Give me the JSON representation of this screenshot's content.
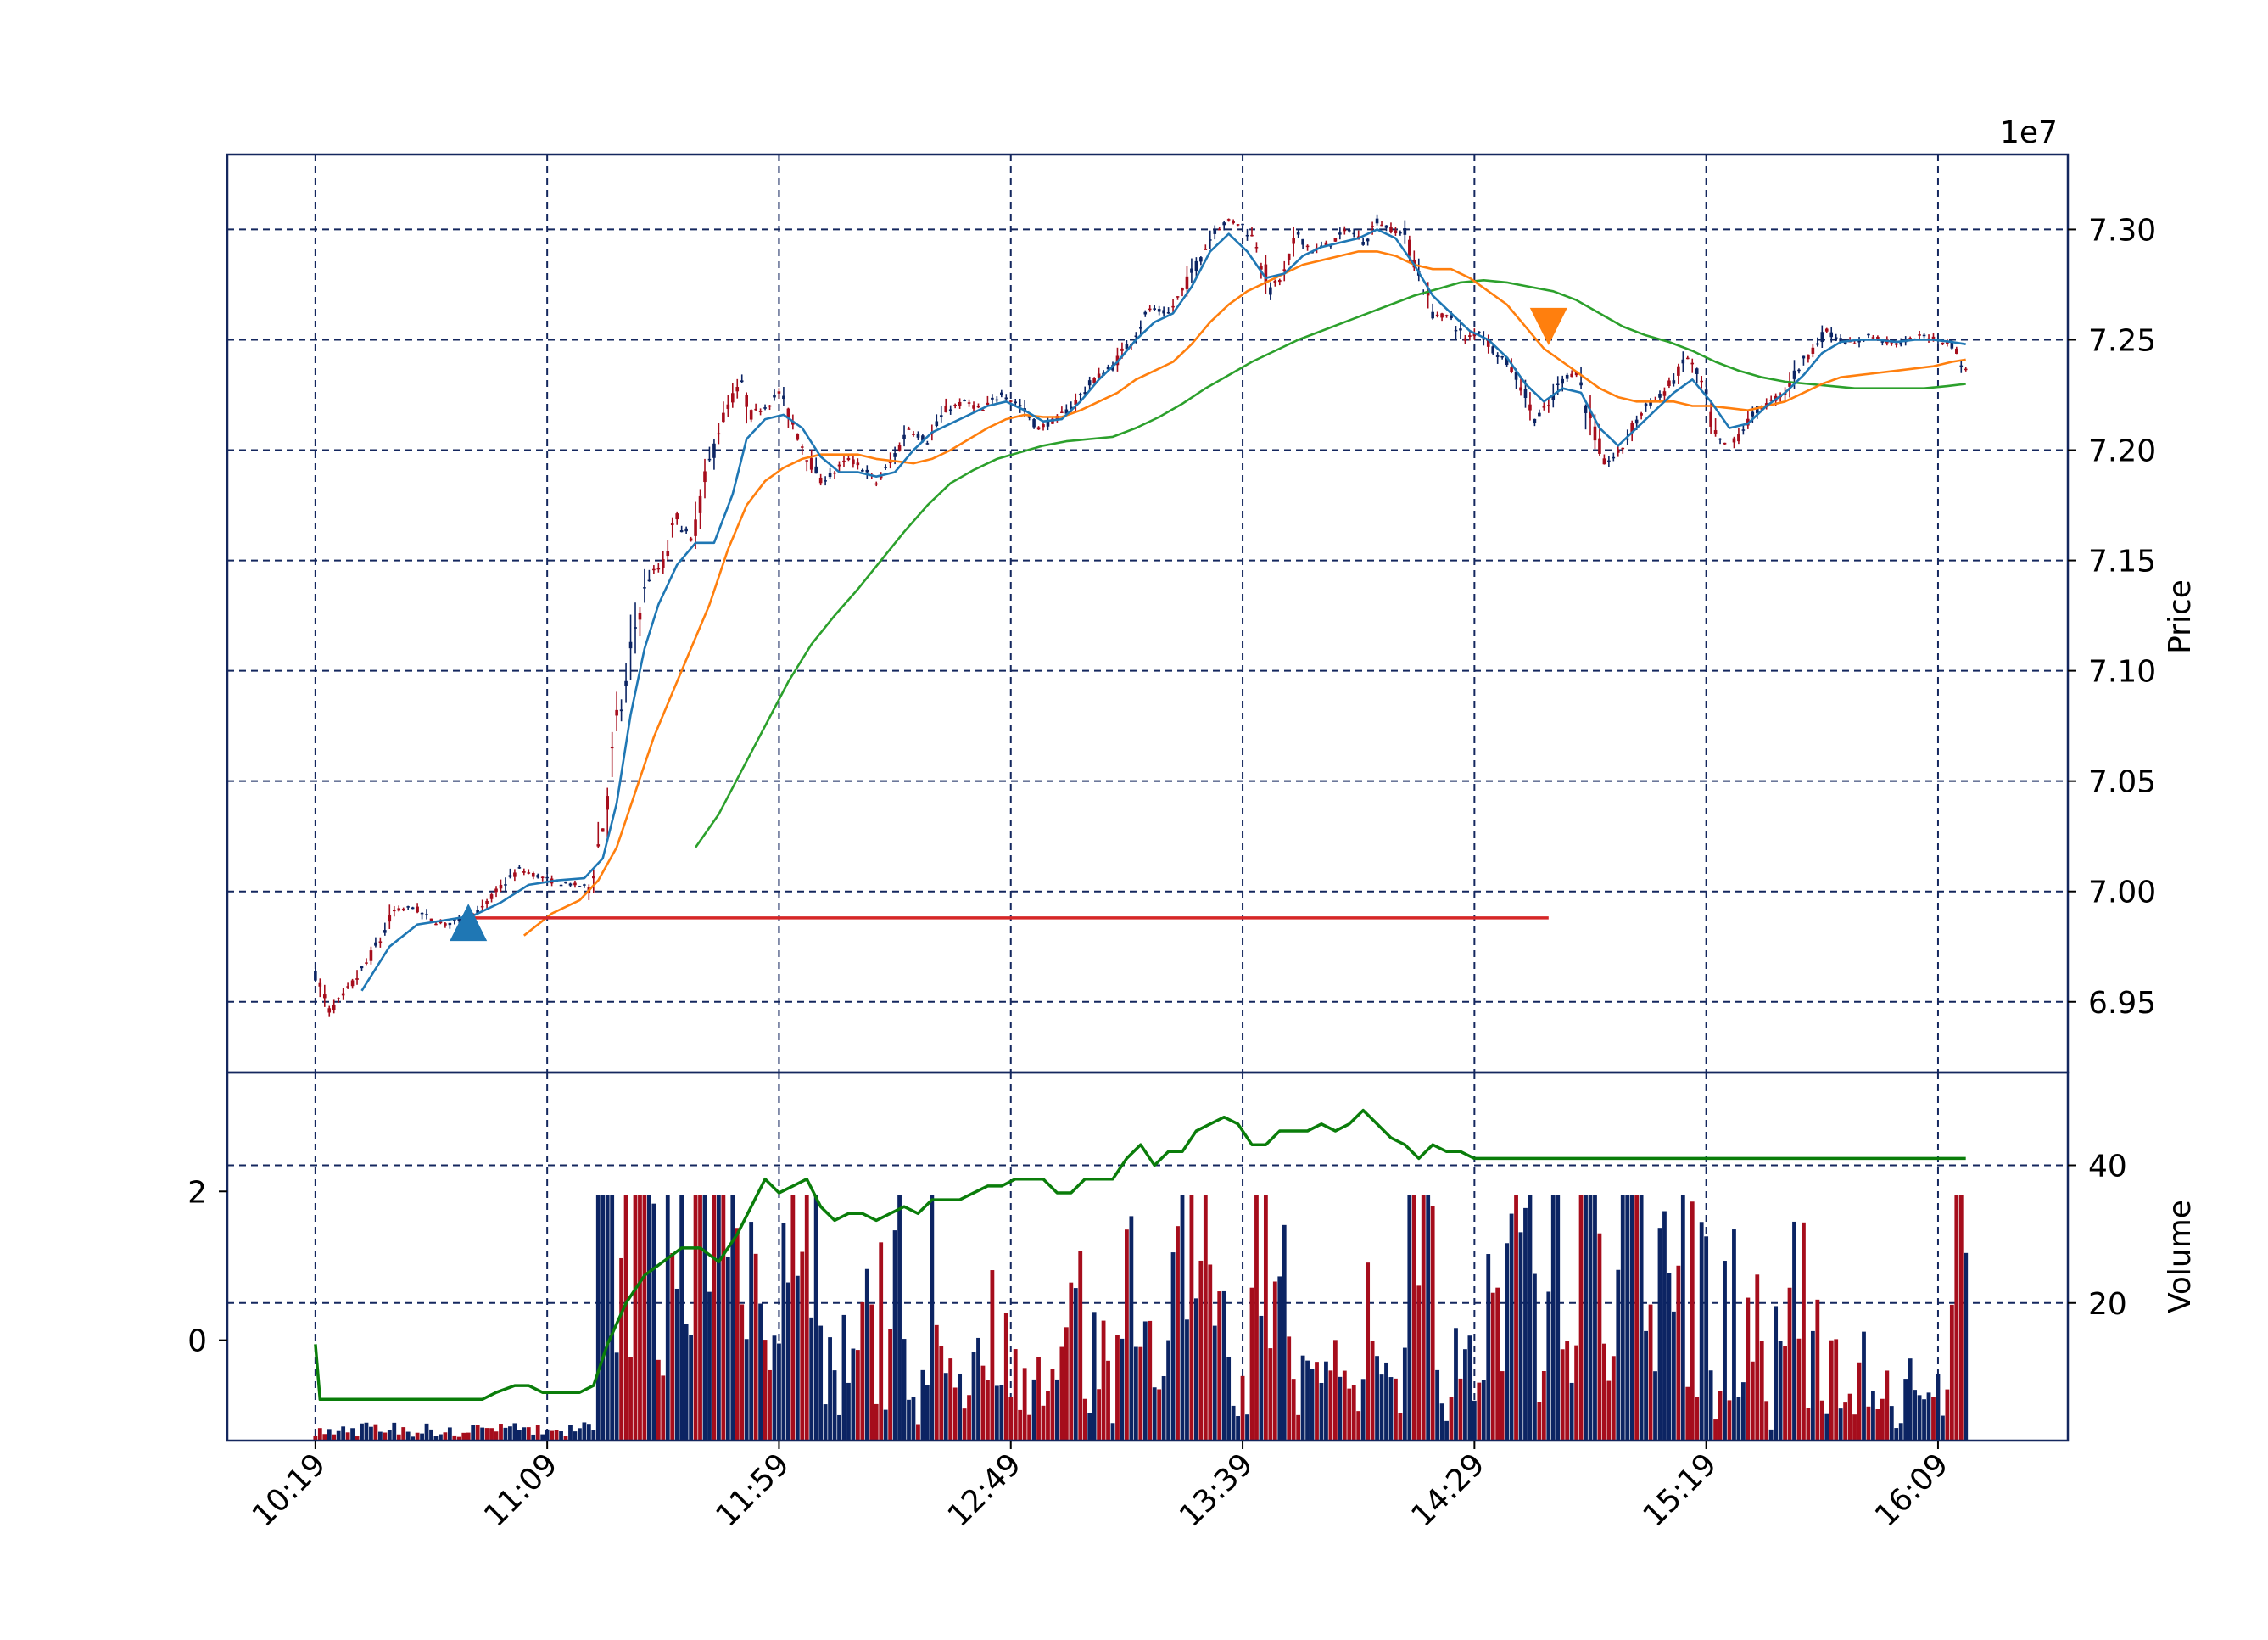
{
  "chart_data": {
    "type": "candlestick",
    "price_axis": {
      "label": "Price",
      "multiplier_label": "1e7",
      "ticks": [
        6.95,
        7.0,
        7.05,
        7.1,
        7.15,
        7.2,
        7.25,
        7.3
      ],
      "tick_labels": [
        "6.95",
        "7.00",
        "7.05",
        "7.10",
        "7.15",
        "7.20",
        "7.25",
        "7.30"
      ],
      "range": [
        6.918,
        7.334
      ],
      "side": "right"
    },
    "time_axis": {
      "tick_minutes": [
        619,
        669,
        719,
        769,
        819,
        869,
        919,
        969
      ],
      "tick_labels": [
        "10:19",
        "11:09",
        "11:59",
        "12:49",
        "13:39",
        "14:29",
        "15:19",
        "16:09"
      ],
      "range_minutes": [
        600,
        997
      ]
    },
    "volume_axis_left": {
      "ticks": [
        0,
        2
      ],
      "tick_labels": [
        "0",
        "2"
      ],
      "range": [
        -1.35,
        3.6
      ]
    },
    "volume_axis_right": {
      "label": "Volume",
      "ticks": [
        20,
        40
      ],
      "tick_labels": [
        "20",
        "40"
      ],
      "range": [
        0,
        53.5
      ]
    },
    "price_path": [
      [
        619,
        6.962
      ],
      [
        622,
        6.946
      ],
      [
        625,
        6.952
      ],
      [
        629,
        6.964
      ],
      [
        633,
        6.978
      ],
      [
        636,
        6.991
      ],
      [
        640,
        6.993
      ],
      [
        644,
        6.987
      ],
      [
        647,
        6.985
      ],
      [
        651,
        6.988
      ],
      [
        655,
        6.992
      ],
      [
        659,
        7.002
      ],
      [
        663,
        7.01
      ],
      [
        667,
        7.007
      ],
      [
        671,
        7.004
      ],
      [
        675,
        7.003
      ],
      [
        678,
        7.002
      ],
      [
        681,
        7.03
      ],
      [
        684,
        7.075
      ],
      [
        686,
        7.092
      ],
      [
        688,
        7.12
      ],
      [
        691,
        7.143
      ],
      [
        694,
        7.148
      ],
      [
        697,
        7.17
      ],
      [
        700,
        7.158
      ],
      [
        703,
        7.185
      ],
      [
        706,
        7.21
      ],
      [
        709,
        7.224
      ],
      [
        711,
        7.23
      ],
      [
        713,
        7.216
      ],
      [
        716,
        7.22
      ],
      [
        719,
        7.226
      ],
      [
        722,
        7.212
      ],
      [
        725,
        7.198
      ],
      [
        728,
        7.186
      ],
      [
        731,
        7.19
      ],
      [
        734,
        7.196
      ],
      [
        737,
        7.192
      ],
      [
        740,
        7.185
      ],
      [
        743,
        7.194
      ],
      [
        747,
        7.21
      ],
      [
        751,
        7.204
      ],
      [
        755,
        7.218
      ],
      [
        759,
        7.222
      ],
      [
        763,
        7.218
      ],
      [
        767,
        7.226
      ],
      [
        771,
        7.22
      ],
      [
        775,
        7.21
      ],
      [
        779,
        7.214
      ],
      [
        783,
        7.222
      ],
      [
        787,
        7.232
      ],
      [
        791,
        7.238
      ],
      [
        795,
        7.25
      ],
      [
        799,
        7.264
      ],
      [
        803,
        7.262
      ],
      [
        806,
        7.272
      ],
      [
        810,
        7.288
      ],
      [
        813,
        7.3
      ],
      [
        816,
        7.304
      ],
      [
        819,
        7.302
      ],
      [
        822,
        7.294
      ],
      [
        825,
        7.272
      ],
      [
        828,
        7.28
      ],
      [
        831,
        7.298
      ],
      [
        834,
        7.29
      ],
      [
        838,
        7.294
      ],
      [
        842,
        7.3
      ],
      [
        845,
        7.294
      ],
      [
        848,
        7.304
      ],
      [
        851,
        7.3
      ],
      [
        854,
        7.298
      ],
      [
        857,
        7.28
      ],
      [
        860,
        7.262
      ],
      [
        864,
        7.26
      ],
      [
        867,
        7.25
      ],
      [
        870,
        7.254
      ],
      [
        873,
        7.246
      ],
      [
        876,
        7.24
      ],
      [
        879,
        7.23
      ],
      [
        882,
        7.214
      ],
      [
        885,
        7.22
      ],
      [
        888,
        7.232
      ],
      [
        891,
        7.236
      ],
      [
        894,
        7.214
      ],
      [
        897,
        7.194
      ],
      [
        900,
        7.198
      ],
      [
        903,
        7.21
      ],
      [
        906,
        7.22
      ],
      [
        909,
        7.224
      ],
      [
        912,
        7.232
      ],
      [
        915,
        7.242
      ],
      [
        918,
        7.23
      ],
      [
        921,
        7.206
      ],
      [
        924,
        7.2
      ],
      [
        927,
        7.21
      ],
      [
        930,
        7.218
      ],
      [
        933,
        7.222
      ],
      [
        936,
        7.226
      ],
      [
        939,
        7.238
      ],
      [
        942,
        7.246
      ],
      [
        945,
        7.254
      ],
      [
        948,
        7.25
      ],
      [
        951,
        7.248
      ],
      [
        954,
        7.252
      ],
      [
        957,
        7.25
      ],
      [
        960,
        7.248
      ],
      [
        963,
        7.25
      ],
      [
        966,
        7.252
      ],
      [
        969,
        7.25
      ],
      [
        972,
        7.248
      ],
      [
        975,
        7.236
      ]
    ],
    "ma_fast": [
      [
        629,
        6.955
      ],
      [
        635,
        6.975
      ],
      [
        641,
        6.985
      ],
      [
        647,
        6.987
      ],
      [
        653,
        6.989
      ],
      [
        659,
        6.995
      ],
      [
        665,
        7.003
      ],
      [
        671,
        7.005
      ],
      [
        677,
        7.006
      ],
      [
        681,
        7.015
      ],
      [
        684,
        7.04
      ],
      [
        687,
        7.08
      ],
      [
        690,
        7.11
      ],
      [
        693,
        7.13
      ],
      [
        697,
        7.148
      ],
      [
        701,
        7.158
      ],
      [
        705,
        7.158
      ],
      [
        709,
        7.18
      ],
      [
        712,
        7.205
      ],
      [
        716,
        7.214
      ],
      [
        720,
        7.216
      ],
      [
        724,
        7.21
      ],
      [
        728,
        7.197
      ],
      [
        732,
        7.19
      ],
      [
        736,
        7.19
      ],
      [
        740,
        7.188
      ],
      [
        744,
        7.19
      ],
      [
        748,
        7.2
      ],
      [
        752,
        7.208
      ],
      [
        756,
        7.212
      ],
      [
        760,
        7.216
      ],
      [
        764,
        7.22
      ],
      [
        768,
        7.222
      ],
      [
        772,
        7.218
      ],
      [
        776,
        7.213
      ],
      [
        780,
        7.214
      ],
      [
        784,
        7.222
      ],
      [
        788,
        7.232
      ],
      [
        792,
        7.24
      ],
      [
        796,
        7.25
      ],
      [
        800,
        7.258
      ],
      [
        804,
        7.262
      ],
      [
        808,
        7.274
      ],
      [
        812,
        7.29
      ],
      [
        816,
        7.298
      ],
      [
        820,
        7.29
      ],
      [
        824,
        7.278
      ],
      [
        828,
        7.28
      ],
      [
        832,
        7.288
      ],
      [
        836,
        7.292
      ],
      [
        840,
        7.294
      ],
      [
        844,
        7.296
      ],
      [
        848,
        7.3
      ],
      [
        852,
        7.296
      ],
      [
        856,
        7.284
      ],
      [
        860,
        7.27
      ],
      [
        864,
        7.262
      ],
      [
        868,
        7.254
      ],
      [
        872,
        7.25
      ],
      [
        876,
        7.242
      ],
      [
        880,
        7.23
      ],
      [
        884,
        7.222
      ],
      [
        888,
        7.228
      ],
      [
        892,
        7.226
      ],
      [
        896,
        7.21
      ],
      [
        900,
        7.202
      ],
      [
        904,
        7.21
      ],
      [
        908,
        7.218
      ],
      [
        912,
        7.226
      ],
      [
        916,
        7.232
      ],
      [
        920,
        7.222
      ],
      [
        924,
        7.21
      ],
      [
        928,
        7.212
      ],
      [
        932,
        7.22
      ],
      [
        936,
        7.226
      ],
      [
        940,
        7.234
      ],
      [
        944,
        7.244
      ],
      [
        948,
        7.249
      ],
      [
        952,
        7.25
      ],
      [
        956,
        7.25
      ],
      [
        960,
        7.249
      ],
      [
        964,
        7.25
      ],
      [
        968,
        7.25
      ],
      [
        972,
        7.249
      ],
      [
        975,
        7.248
      ]
    ],
    "ma_mid": [
      [
        664,
        6.98
      ],
      [
        670,
        6.99
      ],
      [
        676,
        6.996
      ],
      [
        680,
        7.005
      ],
      [
        684,
        7.02
      ],
      [
        688,
        7.045
      ],
      [
        692,
        7.07
      ],
      [
        696,
        7.09
      ],
      [
        700,
        7.11
      ],
      [
        704,
        7.13
      ],
      [
        708,
        7.155
      ],
      [
        712,
        7.175
      ],
      [
        716,
        7.186
      ],
      [
        720,
        7.192
      ],
      [
        724,
        7.196
      ],
      [
        728,
        7.198
      ],
      [
        732,
        7.198
      ],
      [
        736,
        7.198
      ],
      [
        740,
        7.196
      ],
      [
        744,
        7.195
      ],
      [
        748,
        7.194
      ],
      [
        752,
        7.196
      ],
      [
        756,
        7.2
      ],
      [
        760,
        7.205
      ],
      [
        764,
        7.21
      ],
      [
        768,
        7.214
      ],
      [
        772,
        7.216
      ],
      [
        776,
        7.215
      ],
      [
        780,
        7.215
      ],
      [
        784,
        7.218
      ],
      [
        788,
        7.222
      ],
      [
        792,
        7.226
      ],
      [
        796,
        7.232
      ],
      [
        800,
        7.236
      ],
      [
        804,
        7.24
      ],
      [
        808,
        7.248
      ],
      [
        812,
        7.258
      ],
      [
        816,
        7.266
      ],
      [
        820,
        7.272
      ],
      [
        824,
        7.276
      ],
      [
        828,
        7.28
      ],
      [
        832,
        7.284
      ],
      [
        836,
        7.286
      ],
      [
        840,
        7.288
      ],
      [
        844,
        7.29
      ],
      [
        848,
        7.29
      ],
      [
        852,
        7.288
      ],
      [
        856,
        7.284
      ],
      [
        860,
        7.282
      ],
      [
        864,
        7.282
      ],
      [
        868,
        7.278
      ],
      [
        872,
        7.272
      ],
      [
        876,
        7.266
      ],
      [
        880,
        7.256
      ],
      [
        884,
        7.246
      ],
      [
        888,
        7.24
      ],
      [
        892,
        7.234
      ],
      [
        896,
        7.228
      ],
      [
        900,
        7.224
      ],
      [
        904,
        7.222
      ],
      [
        908,
        7.222
      ],
      [
        912,
        7.222
      ],
      [
        916,
        7.22
      ],
      [
        920,
        7.22
      ],
      [
        924,
        7.219
      ],
      [
        928,
        7.218
      ],
      [
        932,
        7.22
      ],
      [
        936,
        7.222
      ],
      [
        940,
        7.226
      ],
      [
        944,
        7.23
      ],
      [
        948,
        7.233
      ],
      [
        952,
        7.234
      ],
      [
        956,
        7.235
      ],
      [
        960,
        7.236
      ],
      [
        964,
        7.237
      ],
      [
        968,
        7.238
      ],
      [
        972,
        7.24
      ],
      [
        975,
        7.241
      ]
    ],
    "ma_slow": [
      [
        701,
        7.02
      ],
      [
        706,
        7.035
      ],
      [
        711,
        7.055
      ],
      [
        716,
        7.075
      ],
      [
        721,
        7.095
      ],
      [
        726,
        7.112
      ],
      [
        731,
        7.125
      ],
      [
        736,
        7.137
      ],
      [
        741,
        7.15
      ],
      [
        746,
        7.163
      ],
      [
        751,
        7.175
      ],
      [
        756,
        7.185
      ],
      [
        761,
        7.191
      ],
      [
        766,
        7.196
      ],
      [
        771,
        7.199
      ],
      [
        776,
        7.202
      ],
      [
        781,
        7.204
      ],
      [
        786,
        7.205
      ],
      [
        791,
        7.206
      ],
      [
        796,
        7.21
      ],
      [
        801,
        7.215
      ],
      [
        806,
        7.221
      ],
      [
        811,
        7.228
      ],
      [
        816,
        7.234
      ],
      [
        821,
        7.24
      ],
      [
        826,
        7.245
      ],
      [
        831,
        7.25
      ],
      [
        836,
        7.254
      ],
      [
        841,
        7.258
      ],
      [
        846,
        7.262
      ],
      [
        851,
        7.266
      ],
      [
        856,
        7.27
      ],
      [
        861,
        7.273
      ],
      [
        866,
        7.276
      ],
      [
        871,
        7.277
      ],
      [
        876,
        7.276
      ],
      [
        881,
        7.274
      ],
      [
        886,
        7.272
      ],
      [
        891,
        7.268
      ],
      [
        896,
        7.262
      ],
      [
        901,
        7.256
      ],
      [
        906,
        7.252
      ],
      [
        911,
        7.249
      ],
      [
        916,
        7.245
      ],
      [
        921,
        7.24
      ],
      [
        926,
        7.236
      ],
      [
        931,
        7.233
      ],
      [
        936,
        7.231
      ],
      [
        941,
        7.23
      ],
      [
        946,
        7.229
      ],
      [
        951,
        7.228
      ],
      [
        956,
        7.228
      ],
      [
        961,
        7.228
      ],
      [
        966,
        7.228
      ],
      [
        971,
        7.229
      ],
      [
        975,
        7.23
      ]
    ],
    "reference_line": {
      "value": 6.988,
      "start": 652,
      "end": 885
    },
    "markers": [
      {
        "kind": "buy",
        "time": 652,
        "price": 6.986,
        "shape": "triangle-up"
      },
      {
        "kind": "sell",
        "time": 885,
        "price": 7.256,
        "shape": "triangle-down"
      }
    ],
    "volume_line_right": [
      [
        619,
        14
      ],
      [
        620,
        6
      ],
      [
        626,
        6
      ],
      [
        632,
        6
      ],
      [
        638,
        6
      ],
      [
        644,
        6
      ],
      [
        650,
        6
      ],
      [
        655,
        6
      ],
      [
        658,
        7
      ],
      [
        662,
        8
      ],
      [
        665,
        8
      ],
      [
        668,
        7
      ],
      [
        672,
        7
      ],
      [
        676,
        7
      ],
      [
        679,
        8
      ],
      [
        682,
        14
      ],
      [
        686,
        20
      ],
      [
        690,
        24
      ],
      [
        694,
        26
      ],
      [
        698,
        28
      ],
      [
        702,
        28
      ],
      [
        706,
        26
      ],
      [
        710,
        30
      ],
      [
        713,
        34
      ],
      [
        716,
        38
      ],
      [
        719,
        36
      ],
      [
        722,
        37
      ],
      [
        725,
        38
      ],
      [
        728,
        34
      ],
      [
        731,
        32
      ],
      [
        734,
        33
      ],
      [
        737,
        33
      ],
      [
        740,
        32
      ],
      [
        743,
        33
      ],
      [
        746,
        34
      ],
      [
        749,
        33
      ],
      [
        752,
        35
      ],
      [
        755,
        35
      ],
      [
        758,
        35
      ],
      [
        761,
        36
      ],
      [
        764,
        37
      ],
      [
        767,
        37
      ],
      [
        770,
        38
      ],
      [
        773,
        38
      ],
      [
        776,
        38
      ],
      [
        779,
        36
      ],
      [
        782,
        36
      ],
      [
        785,
        38
      ],
      [
        788,
        38
      ],
      [
        791,
        38
      ],
      [
        794,
        41
      ],
      [
        797,
        43
      ],
      [
        800,
        40
      ],
      [
        803,
        42
      ],
      [
        806,
        42
      ],
      [
        809,
        45
      ],
      [
        812,
        46
      ],
      [
        815,
        47
      ],
      [
        818,
        46
      ],
      [
        821,
        43
      ],
      [
        824,
        43
      ],
      [
        827,
        45
      ],
      [
        830,
        45
      ],
      [
        833,
        45
      ],
      [
        836,
        46
      ],
      [
        839,
        45
      ],
      [
        842,
        46
      ],
      [
        845,
        48
      ],
      [
        848,
        46
      ],
      [
        851,
        44
      ],
      [
        854,
        43
      ],
      [
        857,
        41
      ],
      [
        860,
        43
      ],
      [
        863,
        42
      ],
      [
        866,
        42
      ],
      [
        869,
        41
      ],
      [
        872,
        41
      ],
      [
        875,
        41
      ],
      [
        880,
        41
      ],
      [
        900,
        41
      ],
      [
        920,
        41
      ],
      [
        940,
        41
      ],
      [
        960,
        41
      ],
      [
        975,
        41
      ]
    ],
    "volume_bar_color_up": "#0c2463",
    "volume_bar_color_down": "#a60d1c",
    "ma_fast_color": "#1f77b4",
    "ma_mid_color": "#ff7f0e",
    "ma_slow_color": "#2ca02c",
    "reference_line_color": "#d62728",
    "volume_line_color": "#0a7d0a",
    "grid": true,
    "grid_style": "dashed",
    "grid_color": "#14275e"
  }
}
